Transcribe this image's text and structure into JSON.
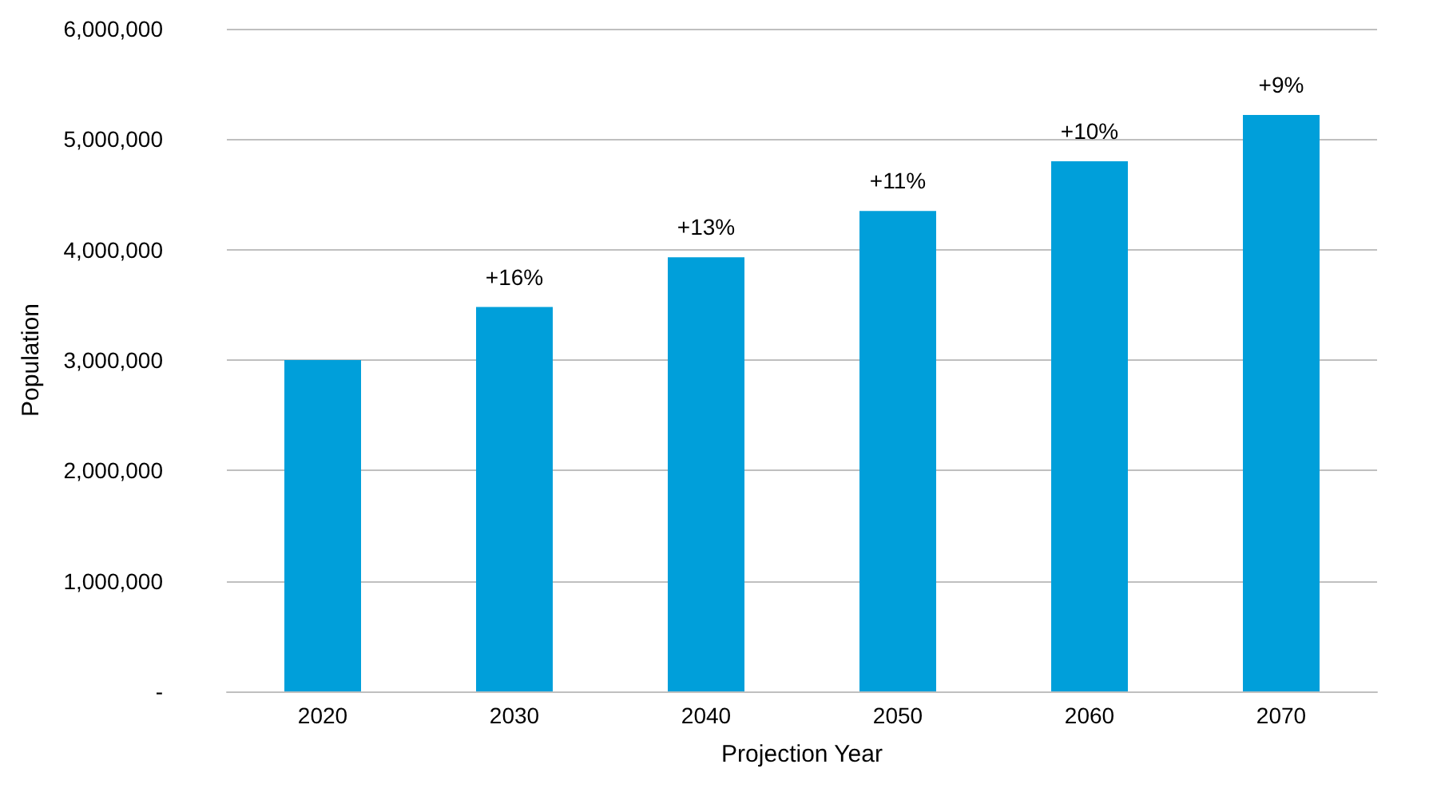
{
  "chart_data": {
    "type": "bar",
    "xlabel": "Projection Year",
    "ylabel": "Population",
    "categories": [
      "2020",
      "2030",
      "2040",
      "2050",
      "2060",
      "2070"
    ],
    "values": [
      3000000,
      3480000,
      3930000,
      4350000,
      4800000,
      5220000
    ],
    "annotations": [
      {
        "text": "+16%",
        "x": "2030",
        "y": 3480000
      },
      {
        "text": "+13%",
        "x": "2040",
        "y": 3930000
      },
      {
        "text": "+11%",
        "x": "2050",
        "y": 4350000
      },
      {
        "text": "+10%",
        "x": "2060",
        "y": 4800000
      },
      {
        "text": "+9%",
        "x": "2070",
        "y": 5220000
      }
    ],
    "color": "#009fda",
    "ylim": [
      0,
      6000000
    ],
    "yticks": [
      {
        "value": 0,
        "label": "-"
      },
      {
        "value": 1000000,
        "label": "1,000,000"
      },
      {
        "value": 2000000,
        "label": "2,000,000"
      },
      {
        "value": 3000000,
        "label": "3,000,000"
      },
      {
        "value": 4000000,
        "label": "4,000,000"
      },
      {
        "value": 5000000,
        "label": "5,000,000"
      },
      {
        "value": 6000000,
        "label": "6,000,000"
      }
    ],
    "grid": "y"
  }
}
